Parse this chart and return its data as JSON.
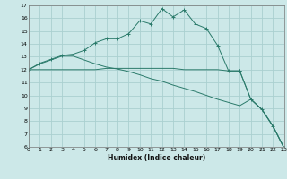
{
  "xlabel": "Humidex (Indice chaleur)",
  "bg_color": "#cce8e8",
  "grid_color": "#aad0d0",
  "line_color": "#2a7a6a",
  "ylim": [
    6,
    17
  ],
  "xlim": [
    0,
    23
  ],
  "yticks": [
    6,
    7,
    8,
    9,
    10,
    11,
    12,
    13,
    14,
    15,
    16,
    17
  ],
  "xticks": [
    0,
    1,
    2,
    3,
    4,
    5,
    6,
    7,
    8,
    9,
    10,
    11,
    12,
    13,
    14,
    15,
    16,
    17,
    18,
    19,
    20,
    21,
    22,
    23
  ],
  "series": [
    {
      "x": [
        0,
        1,
        2,
        3,
        4,
        5,
        6,
        7,
        8,
        9,
        10,
        11,
        12,
        13,
        14,
        15,
        16,
        17,
        18,
        19
      ],
      "y": [
        12.0,
        12.5,
        12.8,
        13.1,
        13.2,
        13.5,
        14.1,
        14.4,
        14.4,
        14.8,
        15.8,
        15.55,
        16.75,
        16.1,
        16.65,
        15.55,
        15.2,
        13.9,
        11.9,
        11.9
      ],
      "marker": true
    },
    {
      "x": [
        0,
        1,
        2,
        3,
        4,
        5,
        6,
        7,
        8,
        9,
        10,
        11,
        12,
        13,
        14,
        15,
        16,
        17,
        18,
        19,
        20,
        21,
        22,
        23
      ],
      "y": [
        12.0,
        12.0,
        12.0,
        12.0,
        12.0,
        12.0,
        12.0,
        12.1,
        12.1,
        12.1,
        12.1,
        12.1,
        12.1,
        12.1,
        12.0,
        12.0,
        12.0,
        12.0,
        11.9,
        11.9,
        9.7,
        8.9,
        7.6,
        5.9
      ],
      "marker": false
    },
    {
      "x": [
        0,
        1,
        2,
        3,
        4,
        5,
        6,
        7,
        8,
        9,
        10,
        11,
        12,
        13,
        14,
        15,
        16,
        17,
        18,
        19,
        20,
        21,
        22,
        23
      ],
      "y": [
        12.0,
        12.45,
        12.75,
        13.05,
        13.05,
        12.75,
        12.45,
        12.2,
        12.05,
        11.85,
        11.6,
        11.3,
        11.1,
        10.8,
        10.55,
        10.3,
        10.0,
        9.7,
        9.45,
        9.2,
        9.7,
        8.9,
        7.6,
        5.9
      ],
      "marker": false
    },
    {
      "x": [
        19,
        20,
        21,
        22,
        23
      ],
      "y": [
        11.9,
        9.7,
        8.9,
        7.6,
        5.9
      ],
      "marker": true
    }
  ]
}
